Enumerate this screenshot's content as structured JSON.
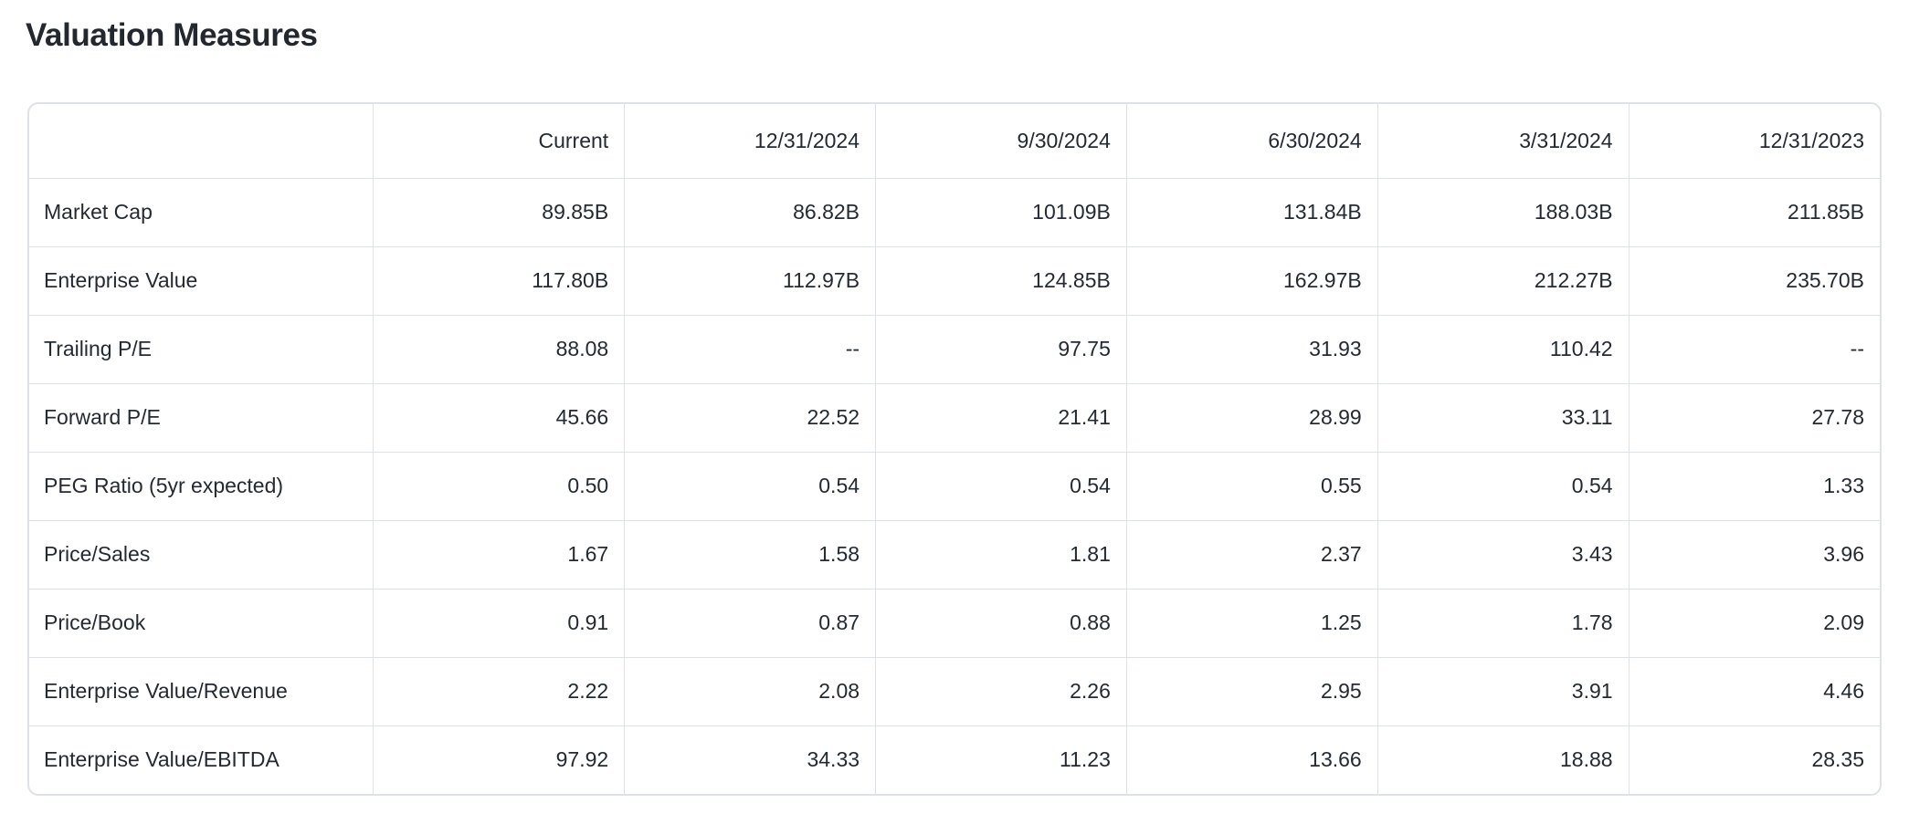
{
  "page": {
    "title": "Valuation Measures"
  },
  "table": {
    "columns": [
      "",
      "Current",
      "12/31/2024",
      "9/30/2024",
      "6/30/2024",
      "3/31/2024",
      "12/31/2023"
    ],
    "rows": [
      {
        "label": "Market Cap",
        "values": [
          "89.85B",
          "86.82B",
          "101.09B",
          "131.84B",
          "188.03B",
          "211.85B"
        ]
      },
      {
        "label": "Enterprise Value",
        "values": [
          "117.80B",
          "112.97B",
          "124.85B",
          "162.97B",
          "212.27B",
          "235.70B"
        ]
      },
      {
        "label": "Trailing P/E",
        "values": [
          "88.08",
          "--",
          "97.75",
          "31.93",
          "110.42",
          "--"
        ]
      },
      {
        "label": "Forward P/E",
        "values": [
          "45.66",
          "22.52",
          "21.41",
          "28.99",
          "33.11",
          "27.78"
        ]
      },
      {
        "label": "PEG Ratio (5yr expected)",
        "values": [
          "0.50",
          "0.54",
          "0.54",
          "0.55",
          "0.54",
          "1.33"
        ]
      },
      {
        "label": "Price/Sales",
        "values": [
          "1.67",
          "1.58",
          "1.81",
          "2.37",
          "3.43",
          "3.96"
        ]
      },
      {
        "label": "Price/Book",
        "values": [
          "0.91",
          "0.87",
          "0.88",
          "1.25",
          "1.78",
          "2.09"
        ]
      },
      {
        "label": "Enterprise Value/Revenue",
        "values": [
          "2.22",
          "2.08",
          "2.26",
          "2.95",
          "3.91",
          "4.46"
        ]
      },
      {
        "label": "Enterprise Value/EBITDA",
        "values": [
          "97.92",
          "34.33",
          "11.23",
          "13.66",
          "18.88",
          "28.35"
        ]
      }
    ]
  },
  "colors": {
    "text": "#232a31",
    "title": "#23272e",
    "border": "#dee1e6",
    "background": "#ffffff"
  }
}
